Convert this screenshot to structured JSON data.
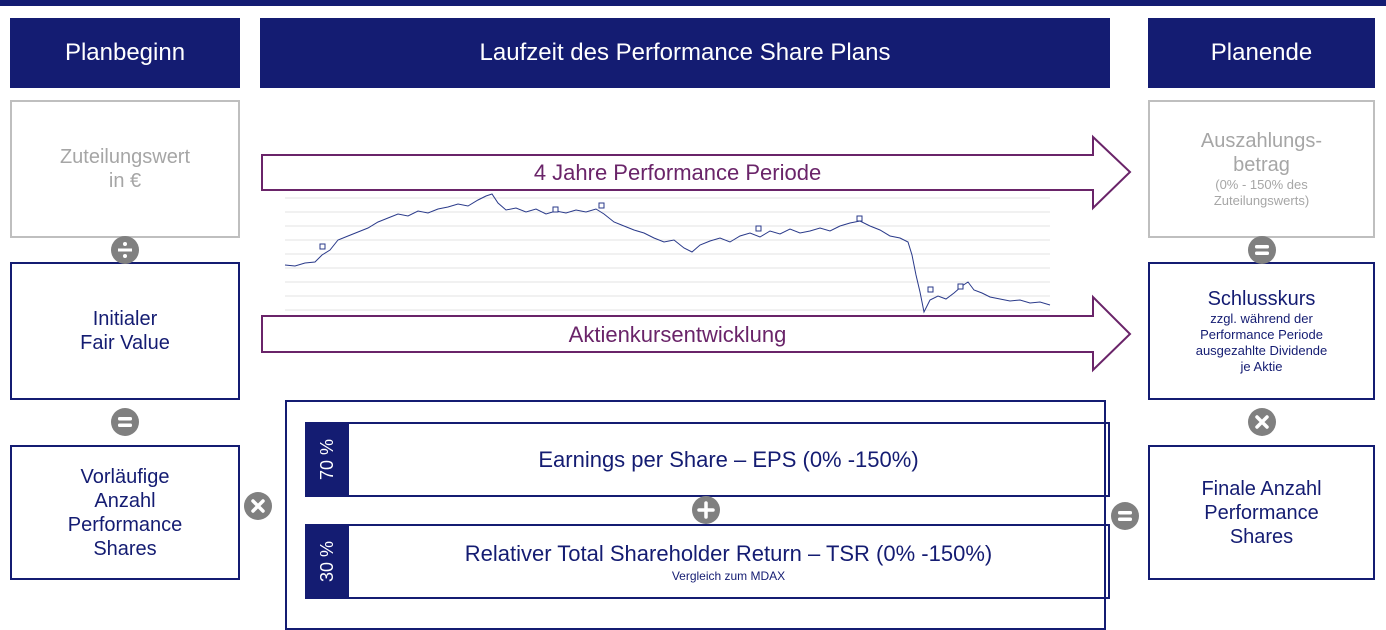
{
  "headers": {
    "left": "Planbeginn",
    "center": "Laufzeit des Performance Share Plans",
    "right": "Planende"
  },
  "left": {
    "grant_value": [
      "Zuteilungswert",
      "in €"
    ],
    "fair_value": [
      "Initialer",
      "Fair Value"
    ],
    "preliminary_shares": [
      "Vorläufige",
      "Anzahl",
      "Performance",
      "Shares"
    ]
  },
  "arrows": {
    "period": "4 Jahre Performance Periode",
    "share_price": "Aktienkursentwicklung"
  },
  "targets": [
    {
      "weight": "70 %",
      "label": "Earnings per Share – EPS (0% -150%)"
    },
    {
      "weight": "30 %",
      "label": "Relativer Total Shareholder Return – TSR (0% -150%)",
      "note": "Vergleich zum MDAX"
    }
  ],
  "right": {
    "payout": {
      "lines": [
        "Auszahlungs-",
        "betrag"
      ],
      "note": [
        "(0% - 150% des",
        "Zuteilungswerts)"
      ]
    },
    "closing_price": {
      "title": "Schlusskurs",
      "note": [
        "zzgl. während der",
        "Performance Periode",
        "ausgezahlte Dividende",
        "je Aktie"
      ]
    },
    "final_shares": [
      "Finale Anzahl",
      "Performance",
      "Shares"
    ]
  }
}
